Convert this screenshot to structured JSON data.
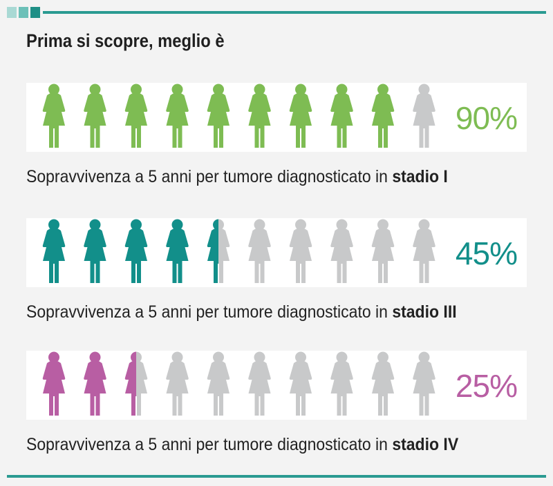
{
  "title": "Prima si scopre, meglio è",
  "colors": {
    "accent": "#2a9a91",
    "grey": "#c8c9ca",
    "deco": [
      "#a9d9d4",
      "#6cc0b8",
      "#1e8f86"
    ]
  },
  "chart_data": {
    "type": "pictograph",
    "icons_per_row": 10,
    "rows": [
      {
        "caption_prefix": "Sopravvivenza a 5 anni per tumore diagnosticato in ",
        "stage": "stadio I",
        "value": 90,
        "value_label": "90%",
        "color": "#7ebc53"
      },
      {
        "caption_prefix": "Sopravvivenza a 5 anni per tumore diagnosticato in ",
        "stage": "stadio III",
        "value": 45,
        "value_label": "45%",
        "color": "#128f8a"
      },
      {
        "caption_prefix": "Sopravvivenza a 5 anni per tumore diagnosticato in ",
        "stage": "stadio IV",
        "value": 25,
        "value_label": "25%",
        "color": "#b85ea3"
      }
    ]
  }
}
